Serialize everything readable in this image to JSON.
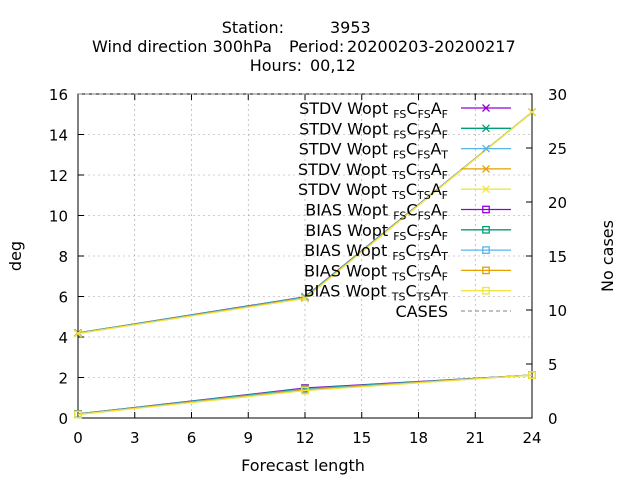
{
  "chart_data": {
    "type": "line",
    "title": {
      "line1_label": "Station:",
      "line1_value": "3953",
      "line2_label": "Wind direction 300hPa",
      "line2_period_label": "Period:",
      "line2_period_value": "20200203-20200217",
      "line3_label": "Hours:",
      "line3_value": "00,12"
    },
    "xlabel": "Forecast length",
    "ylabel": "deg",
    "y2label": "No cases",
    "x_ticks": [
      "0",
      "3",
      "6",
      "9",
      "12",
      "15",
      "18",
      "21",
      "24"
    ],
    "y_ticks": [
      "0",
      "2",
      "4",
      "6",
      "8",
      "10",
      "12",
      "14",
      "16"
    ],
    "y2_ticks": [
      "0",
      "5",
      "10",
      "15",
      "20",
      "25",
      "30"
    ],
    "xlim": [
      0,
      24
    ],
    "ylim": [
      0,
      16
    ],
    "y2lim": [
      0,
      30
    ],
    "grid": true,
    "legend_position": "top-right",
    "x": [
      0,
      12,
      24
    ],
    "series": [
      {
        "prefix": "STDV Wopt",
        "s1": "FS",
        "s2": "FS",
        "s3": "F",
        "color": "#9400d3",
        "marker": "x",
        "axis": "y1",
        "values": [
          4.2,
          5.98,
          15.1
        ]
      },
      {
        "prefix": "STDV Wopt",
        "s1": "FS",
        "s2": "FS",
        "s3": "F",
        "color": "#009e73",
        "marker": "x",
        "axis": "y1",
        "values": [
          4.2,
          5.97,
          15.1
        ]
      },
      {
        "prefix": "STDV Wopt",
        "s1": "FS",
        "s2": "FS",
        "s3": "T",
        "color": "#56b4e9",
        "marker": "x",
        "axis": "y1",
        "values": [
          4.19,
          5.95,
          15.1
        ]
      },
      {
        "prefix": "STDV Wopt",
        "s1": "TS",
        "s2": "TS",
        "s3": "F",
        "color": "#e69f00",
        "marker": "x",
        "axis": "y1",
        "values": [
          4.18,
          5.92,
          15.1
        ]
      },
      {
        "prefix": "STDV Wopt",
        "s1": "TS",
        "s2": "TS",
        "s3": "F",
        "color": "#f0e442",
        "marker": "x",
        "axis": "y1",
        "values": [
          4.17,
          5.9,
          15.1
        ]
      },
      {
        "prefix": "BIAS Wopt",
        "s1": "FS",
        "s2": "FS",
        "s3": "F",
        "color": "#9400d3",
        "marker": "square",
        "axis": "y1",
        "values": [
          0.2,
          1.48,
          2.12
        ]
      },
      {
        "prefix": "BIAS Wopt",
        "s1": "FS",
        "s2": "FS",
        "s3": "F",
        "color": "#009e73",
        "marker": "square",
        "axis": "y1",
        "values": [
          0.2,
          1.45,
          2.12
        ]
      },
      {
        "prefix": "BIAS Wopt",
        "s1": "FS",
        "s2": "TS",
        "s3": "T",
        "color": "#56b4e9",
        "marker": "square",
        "axis": "y1",
        "values": [
          0.19,
          1.42,
          2.12
        ]
      },
      {
        "prefix": "BIAS Wopt",
        "s1": "TS",
        "s2": "TS",
        "s3": "F",
        "color": "#e69f00",
        "marker": "square",
        "axis": "y1",
        "values": [
          0.18,
          1.38,
          2.12
        ]
      },
      {
        "prefix": "BIAS Wopt",
        "s1": "TS",
        "s2": "TS",
        "s3": "T",
        "color": "#f0e442",
        "marker": "square",
        "axis": "y1",
        "values": [
          0.17,
          1.35,
          2.12
        ]
      },
      {
        "prefix": "CASES",
        "s1": "",
        "s2": "",
        "s3": "",
        "color": "#808080",
        "marker": "none",
        "dashed": true,
        "axis": "y2",
        "values": [
          30,
          30,
          30
        ]
      }
    ]
  }
}
